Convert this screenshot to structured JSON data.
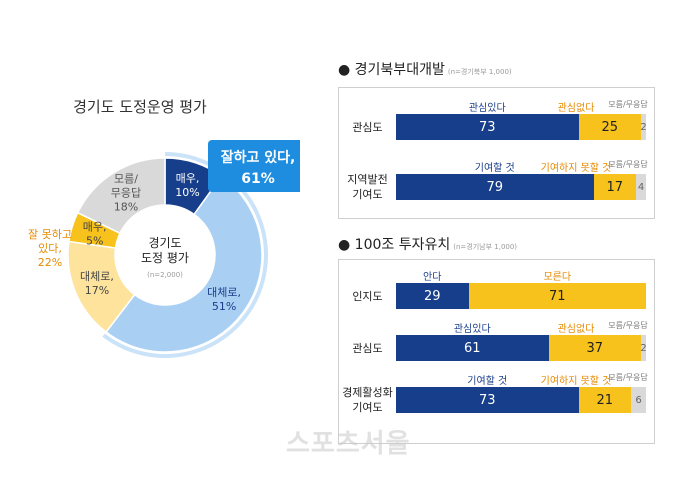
{
  "colors": {
    "dark_blue": "#173e8a",
    "light_blue": "#a9d0f3",
    "orange_dark": "#f7c21b",
    "orange_light": "#fde39c",
    "grey": "#d9d9d9",
    "accent_orange": "#e58a00"
  },
  "chart_data": [
    {
      "type": "pie",
      "title": "경기도 도정운영 평가",
      "center_label": "경기도\n도정 평가",
      "center_note": "(n=2,000)",
      "slices": [
        {
          "label": "매우,",
          "value": 10,
          "text": "10%"
        },
        {
          "label": "대체로,",
          "value": 51,
          "text": "51%"
        },
        {
          "label": "대체로,",
          "value": 17,
          "text": "17%"
        },
        {
          "label": "매우,",
          "value": 5,
          "text": "5%"
        },
        {
          "label": "모름/\n무응답",
          "value": 18,
          "text": "18%"
        }
      ],
      "callout_positive": {
        "label": "잘하고 있다,",
        "value": "61%"
      },
      "callout_negative": {
        "label": "잘 못하고\n있다,",
        "value": "22%"
      }
    },
    {
      "type": "bar",
      "title": "경기북부대개발",
      "note": "(n=경기북부 1,000)",
      "rows": [
        {
          "label": "관심도",
          "categories": [
            "관심있다",
            "관심없다",
            "모름/무응답"
          ],
          "values": [
            73,
            25,
            2
          ]
        },
        {
          "label": "지역발전\n기여도",
          "categories": [
            "기여할 것",
            "기여하지 못할 것",
            "모름/무응답"
          ],
          "values": [
            79,
            17,
            4
          ]
        }
      ]
    },
    {
      "type": "bar",
      "title": "100조 투자유치",
      "note": "(n=경기남부 1,000)",
      "rows": [
        {
          "label": "인지도",
          "categories": [
            "안다",
            "모른다"
          ],
          "values": [
            29,
            71
          ]
        },
        {
          "label": "관심도",
          "categories": [
            "관심있다",
            "관심없다",
            "모름/무응답"
          ],
          "values": [
            61,
            37,
            2
          ]
        },
        {
          "label": "경제활성화\n기여도",
          "categories": [
            "기여할 것",
            "기여하지 못할 것",
            "모름/무응답"
          ],
          "values": [
            73,
            21,
            6
          ]
        }
      ]
    }
  ],
  "sections": {
    "north_bullet": "●",
    "south_bullet": "●"
  },
  "watermark": "스포츠서울"
}
